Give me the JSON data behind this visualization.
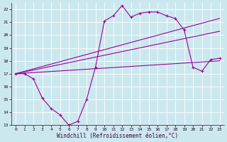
{
  "xlabel": "Windchill (Refroidissement éolien,°C)",
  "bg_color": "#cce8ef",
  "line_color": "#990099",
  "grid_color": "#aacccc",
  "xmin": -0.5,
  "xmax": 23.5,
  "ymin": 13,
  "ymax": 22.5,
  "xticks": [
    0,
    1,
    2,
    3,
    4,
    5,
    6,
    7,
    8,
    9,
    10,
    11,
    12,
    13,
    14,
    15,
    16,
    17,
    18,
    19,
    20,
    21,
    22,
    23
  ],
  "yticks": [
    13,
    14,
    15,
    16,
    17,
    18,
    19,
    20,
    21,
    22
  ],
  "main_x": [
    0,
    1,
    2,
    3,
    4,
    5,
    6,
    7,
    8,
    9,
    10,
    11,
    12,
    13,
    14,
    15,
    16,
    17,
    18,
    19,
    20,
    21,
    22,
    23
  ],
  "main_y": [
    17.0,
    17.0,
    16.6,
    15.1,
    14.3,
    13.8,
    13.0,
    13.3,
    15.0,
    17.5,
    21.1,
    21.5,
    22.3,
    21.4,
    21.7,
    21.8,
    21.8,
    21.5,
    21.3,
    20.4,
    17.5,
    17.2,
    18.1,
    18.2
  ],
  "trend1_x": [
    0,
    23
  ],
  "trend1_y": [
    17.0,
    21.3
  ],
  "trend2_x": [
    0,
    23
  ],
  "trend2_y": [
    17.0,
    20.3
  ],
  "trend3_x": [
    0,
    23
  ],
  "trend3_y": [
    17.0,
    18.0
  ]
}
